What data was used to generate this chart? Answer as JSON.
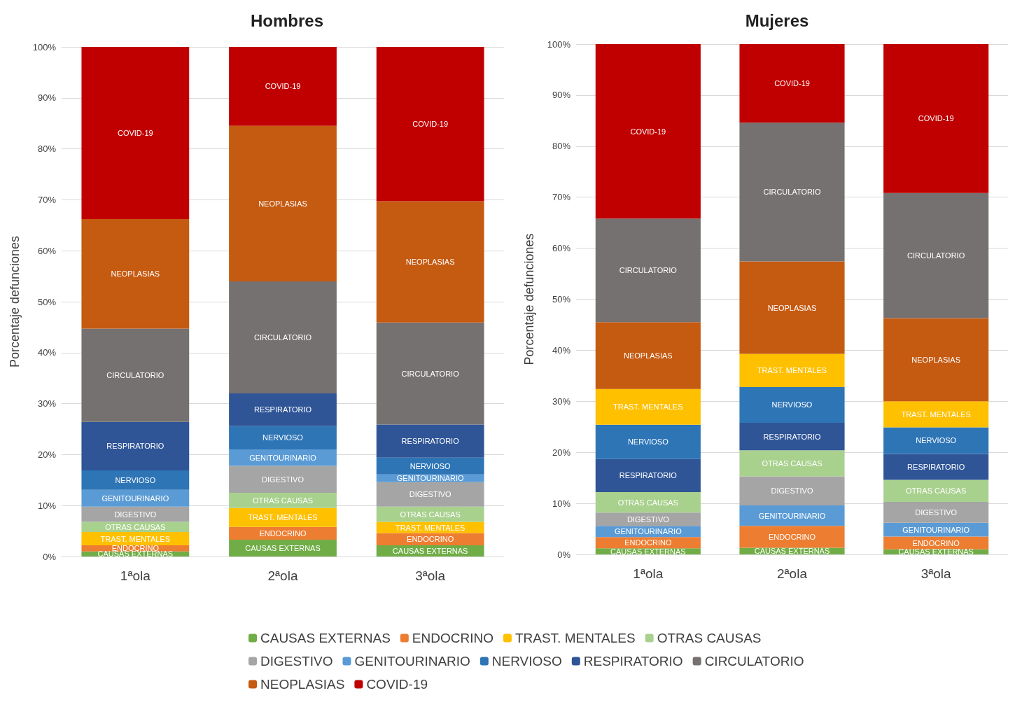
{
  "chart_data": [
    {
      "type": "bar",
      "title": "Hombres",
      "ylabel": "Porcentaje defunciones",
      "categories": [
        "1ªola",
        "2ªola",
        "3ªola"
      ],
      "stacked": true,
      "ylim": [
        0,
        100
      ],
      "yticks": [
        {
          "value": 0,
          "label": "0%"
        },
        {
          "value": 10,
          "label": "10%"
        },
        {
          "value": 20,
          "label": "20%"
        },
        {
          "value": 30,
          "label": "30%"
        },
        {
          "value": 40,
          "label": "40%"
        },
        {
          "value": 50,
          "label": "50%"
        },
        {
          "value": 60,
          "label": "60%"
        },
        {
          "value": 70,
          "label": "70%"
        },
        {
          "value": 80,
          "label": "80%"
        },
        {
          "value": 90,
          "label": "90%"
        },
        {
          "value": 100,
          "label": "100%"
        }
      ],
      "grid": "y",
      "legend": "bottom",
      "series": [
        {
          "name": "CAUSAS EXTERNAS",
          "color": "#70ad47",
          "values": [
            1.0,
            3.3,
            2.2
          ]
        },
        {
          "name": "ENDOCRINO",
          "color": "#ed7d31",
          "values": [
            1.2,
            2.5,
            2.4
          ]
        },
        {
          "name": "TRAST. MENTALES",
          "color": "#ffc000",
          "values": [
            2.6,
            3.7,
            2.2
          ]
        },
        {
          "name": "OTRAS CAUSAS",
          "color": "#a9d18e",
          "values": [
            2.0,
            3.0,
            3.0
          ]
        },
        {
          "name": "DIGESTIVO",
          "color": "#a5a5a5",
          "values": [
            3.0,
            5.3,
            4.8
          ]
        },
        {
          "name": "GENITOURINARIO",
          "color": "#5b9bd5",
          "values": [
            3.3,
            3.2,
            1.5
          ]
        },
        {
          "name": "NERVIOSO",
          "color": "#2e75b6",
          "values": [
            3.8,
            4.6,
            3.3
          ]
        },
        {
          "name": "RESPIRATORIO",
          "color": "#2f5597",
          "values": [
            9.5,
            6.4,
            6.5
          ]
        },
        {
          "name": "CIRCULATORIO",
          "color": "#767171",
          "values": [
            18.3,
            22.0,
            20.0
          ]
        },
        {
          "name": "NEOPLASIAS",
          "color": "#c55a11",
          "values": [
            21.5,
            30.5,
            23.8
          ]
        },
        {
          "name": "COVID-19",
          "color": "#c00000",
          "values": [
            33.8,
            15.5,
            30.3
          ]
        }
      ]
    },
    {
      "type": "bar",
      "title": "Mujeres",
      "ylabel": "Porcentaje defunciones",
      "categories": [
        "1ªola",
        "2ªola",
        "3ªola"
      ],
      "stacked": true,
      "ylim": [
        0,
        100
      ],
      "yticks": [
        {
          "value": 0,
          "label": "0%"
        },
        {
          "value": 10,
          "label": "10%"
        },
        {
          "value": 20,
          "label": "20%"
        },
        {
          "value": 30,
          "label": "30%"
        },
        {
          "value": 40,
          "label": "40%"
        },
        {
          "value": 50,
          "label": "50%"
        },
        {
          "value": 60,
          "label": "60%"
        },
        {
          "value": 70,
          "label": "70%"
        },
        {
          "value": 80,
          "label": "80%"
        },
        {
          "value": 90,
          "label": "90%"
        },
        {
          "value": 100,
          "label": "100%"
        }
      ],
      "grid": "y",
      "series": [
        {
          "name": "CAUSAS EXTERNAS",
          "color": "#70ad47",
          "values": [
            1.2,
            1.3,
            1.0
          ]
        },
        {
          "name": "ENDOCRINO",
          "color": "#ed7d31",
          "values": [
            2.2,
            4.3,
            2.5
          ]
        },
        {
          "name": "GENITOURINARIO",
          "color": "#5b9bd5",
          "values": [
            2.2,
            4.0,
            2.7
          ]
        },
        {
          "name": "DIGESTIVO",
          "color": "#a5a5a5",
          "values": [
            2.6,
            5.7,
            4.1
          ]
        },
        {
          "name": "OTRAS CAUSAS",
          "color": "#a9d18e",
          "values": [
            4.0,
            5.1,
            4.3
          ]
        },
        {
          "name": "RESPIRATORIO",
          "color": "#2f5597",
          "values": [
            6.5,
            5.4,
            5.1
          ]
        },
        {
          "name": "NERVIOSO",
          "color": "#2e75b6",
          "values": [
            6.7,
            7.0,
            5.2
          ]
        },
        {
          "name": "TRAST. MENTALES",
          "color": "#ffc000",
          "values": [
            7.0,
            6.5,
            5.1
          ]
        },
        {
          "name": "NEOPLASIAS",
          "color": "#c55a11",
          "values": [
            13.1,
            18.1,
            16.3
          ]
        },
        {
          "name": "CIRCULATORIO",
          "color": "#767171",
          "values": [
            20.3,
            27.2,
            24.5
          ]
        },
        {
          "name": "COVID-19",
          "color": "#c00000",
          "values": [
            34.2,
            15.4,
            29.2
          ]
        }
      ]
    }
  ]
}
